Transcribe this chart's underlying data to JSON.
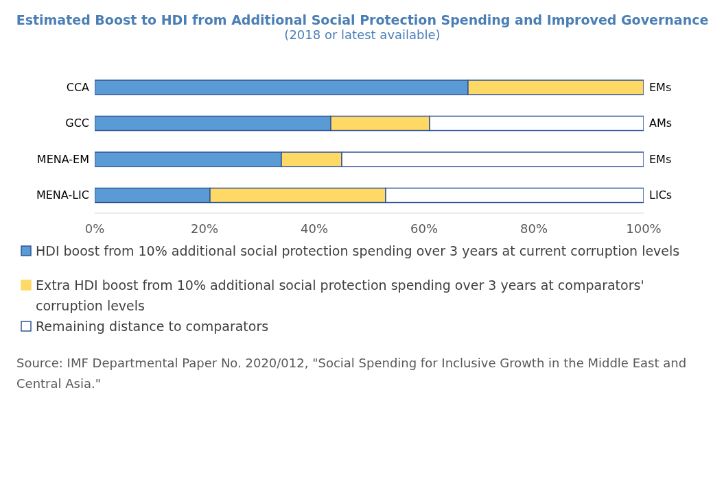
{
  "chart_data": {
    "type": "bar",
    "orientation": "horizontal",
    "stacked": true,
    "title": "Estimated Boost to HDI from Additional Social Protection Spending and Improved Governance",
    "subtitle": "(2018 or latest available)",
    "categories": [
      "CCA",
      "GCC",
      "MENA-EM",
      "MENA-LIC"
    ],
    "y2_categories": [
      "EMs",
      "AMs",
      "EMs",
      "LICs"
    ],
    "series": [
      {
        "name": "HDI boost from 10% additional social protection spending over 3 years at current corruption levels",
        "color": "#5b9bd5",
        "values": [
          68,
          43,
          34,
          21
        ]
      },
      {
        "name": "Extra HDI boost from 10% additional social protection spending over 3 years at comparators' corruption levels",
        "color": "#ffd966",
        "values": [
          32,
          18,
          11,
          32
        ]
      },
      {
        "name": "Remaining distance to comparators",
        "color": "#ffffff",
        "values": [
          0,
          39,
          55,
          47
        ]
      }
    ],
    "xlim": [
      0,
      100
    ],
    "xticks": [
      {
        "value": 0,
        "label": "0%"
      },
      {
        "value": 20,
        "label": "20%"
      },
      {
        "value": 40,
        "label": "40%"
      },
      {
        "value": 60,
        "label": "60%"
      },
      {
        "value": 80,
        "label": "80%"
      },
      {
        "value": 100,
        "label": "100%"
      }
    ],
    "grid": false,
    "legend": "bottom",
    "annotations": [
      "Source: IMF Departmental Paper No. 2020/012, \"Social Spending for Inclusive Growth in the Middle East and Central Asia.\""
    ]
  }
}
